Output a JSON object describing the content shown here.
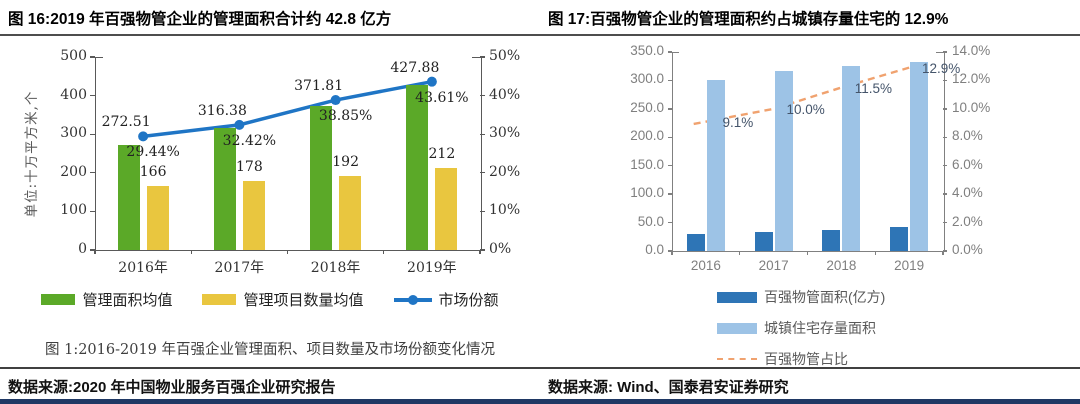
{
  "panels": {
    "left": {
      "title": "图 16:2019 年百强物管企业的管理面积合计约 42.8 亿方",
      "caption": "图 1:2016-2019 年百强企业管理面积、项目数量及市场份额变化情况",
      "source": "数据来源:2020 年中国物业服务百强企业研究报告"
    },
    "right": {
      "title": "图 17:百强物管企业的管理面积约占城镇存量住宅的 12.9%",
      "source": "数据来源: Wind、国泰君安证券研究"
    }
  },
  "colors": {
    "green_bar": "#5BA928",
    "yellow_bar": "#E9C63F",
    "blue_line": "#1F75C5",
    "dark_blue_bar": "#2E75B6",
    "light_blue_bar": "#9DC3E6",
    "orange_dash": "#F0A26F",
    "footer_bar": "#1F3864"
  },
  "chart_data": [
    {
      "type": "bar",
      "subtype": "bar+line-combo",
      "categories": [
        "2016年",
        "2017年",
        "2018年",
        "2019年"
      ],
      "series": [
        {
          "name": "管理面积均值",
          "kind": "bar",
          "color": "#5BA928",
          "axis": "left",
          "values": [
            272.51,
            316.38,
            371.81,
            427.88
          ],
          "labels": [
            "272.51",
            "316.38",
            "371.81",
            "427.88"
          ]
        },
        {
          "name": "管理项目数量均值",
          "kind": "bar",
          "color": "#E9C63F",
          "axis": "left",
          "values": [
            166,
            178,
            192,
            212
          ],
          "labels": [
            "166",
            "178",
            "192",
            "212"
          ]
        },
        {
          "name": "市场份额",
          "kind": "line",
          "color": "#1F75C5",
          "axis": "right",
          "values": [
            29.44,
            32.42,
            38.85,
            43.61
          ],
          "labels": [
            "29.44%",
            "32.42%",
            "38.85%",
            "43.61%"
          ]
        }
      ],
      "left_axis": {
        "min": 0,
        "max": 500,
        "ticks": [
          "0",
          "100",
          "200",
          "300",
          "400",
          "500"
        ],
        "label": "单位:十万平方米,个"
      },
      "right_axis": {
        "min": 0,
        "max": 50,
        "ticks": [
          "0%",
          "10%",
          "20%",
          "30%",
          "40%",
          "50%"
        ]
      },
      "legend_position": "bottom",
      "grid": false
    },
    {
      "type": "bar",
      "subtype": "bar+line-combo",
      "categories": [
        "2016",
        "2017",
        "2018",
        "2019"
      ],
      "series": [
        {
          "name": "百强物管面积(亿方)",
          "kind": "bar",
          "color": "#2E75B6",
          "axis": "left",
          "values": [
            29.3,
            33.2,
            37.7,
            42.8
          ]
        },
        {
          "name": "城镇住宅存量面积",
          "kind": "bar",
          "color": "#9DC3E6",
          "axis": "left",
          "values": [
            300,
            316,
            325,
            332
          ]
        },
        {
          "name": "百强物管占比",
          "kind": "line",
          "dashed": true,
          "color": "#F0A26F",
          "axis": "right",
          "values": [
            9.1,
            10.0,
            11.5,
            12.9
          ],
          "labels": [
            "9.1%",
            "10.0%",
            "11.5%",
            "12.9%"
          ]
        }
      ],
      "left_axis": {
        "min": 0,
        "max": 350,
        "ticks": [
          "0.0",
          "50.0",
          "100.0",
          "150.0",
          "200.0",
          "250.0",
          "300.0",
          "350.0"
        ]
      },
      "right_axis": {
        "min": 0,
        "max": 14,
        "ticks": [
          "0.0%",
          "2.0%",
          "4.0%",
          "6.0%",
          "8.0%",
          "10.0%",
          "12.0%",
          "14.0%"
        ]
      },
      "legend_position": "below-center",
      "grid": false
    }
  ]
}
